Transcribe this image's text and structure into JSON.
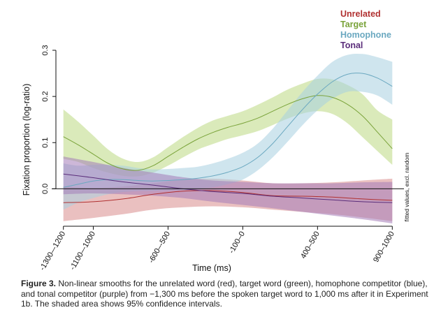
{
  "chart_data": {
    "type": "line",
    "xlabel": "Time (ms)",
    "ylabel": "Fixation proportion (log-ratio)",
    "side_note": "fitted values, excl. random",
    "xlim": [
      -1300,
      1000
    ],
    "ylim": [
      -0.075,
      0.3
    ],
    "x_ticks": [
      {
        "value": -1250,
        "label": "-1300–-1200"
      },
      {
        "value": -1050,
        "label": "-1100–-1000"
      },
      {
        "value": -550,
        "label": "-600–-500"
      },
      {
        "value": -50,
        "label": "-100–0"
      },
      {
        "value": 450,
        "label": "400–500"
      },
      {
        "value": 950,
        "label": "900–1000"
      }
    ],
    "y_ticks": [
      {
        "value": 0.0,
        "label": "0.0"
      },
      {
        "value": 0.1,
        "label": "0.1"
      },
      {
        "value": 0.2,
        "label": "0.2"
      },
      {
        "value": 0.3,
        "label": "0.3"
      }
    ],
    "legend_position": "top-right",
    "series": [
      {
        "name": "Unrelated",
        "color": "#b03030",
        "band_color": "#d98c8c",
        "x": [
          -1250,
          -1050,
          -850,
          -650,
          -450,
          -250,
          -50,
          150,
          350,
          550,
          750,
          950
        ],
        "y": [
          -0.03,
          -0.028,
          -0.022,
          -0.012,
          -0.005,
          -0.004,
          -0.008,
          -0.015,
          -0.016,
          -0.018,
          -0.022,
          -0.025
        ],
        "lower": [
          -0.07,
          -0.063,
          -0.055,
          -0.045,
          -0.04,
          -0.038,
          -0.04,
          -0.045,
          -0.05,
          -0.055,
          -0.062,
          -0.07
        ],
        "upper": [
          0.005,
          0.002,
          0.005,
          0.012,
          0.02,
          0.022,
          0.018,
          0.012,
          0.012,
          0.014,
          0.018,
          0.022
        ]
      },
      {
        "name": "Target",
        "color": "#7aa33a",
        "band_color": "#bcd882",
        "x": [
          -1250,
          -1150,
          -1050,
          -950,
          -850,
          -750,
          -650,
          -550,
          -450,
          -350,
          -250,
          -150,
          -50,
          50,
          150,
          250,
          350,
          450,
          550,
          650,
          750,
          850,
          950
        ],
        "y": [
          0.113,
          0.095,
          0.075,
          0.055,
          0.043,
          0.04,
          0.05,
          0.07,
          0.09,
          0.108,
          0.122,
          0.133,
          0.142,
          0.153,
          0.168,
          0.183,
          0.195,
          0.202,
          0.198,
          0.183,
          0.158,
          0.123,
          0.087
        ],
        "lower": [
          0.065,
          0.058,
          0.045,
          0.035,
          0.028,
          0.027,
          0.035,
          0.05,
          0.068,
          0.085,
          0.097,
          0.108,
          0.116,
          0.125,
          0.138,
          0.152,
          0.163,
          0.168,
          0.162,
          0.142,
          0.112,
          0.082,
          0.052
        ],
        "upper": [
          0.172,
          0.145,
          0.115,
          0.085,
          0.065,
          0.058,
          0.068,
          0.09,
          0.112,
          0.132,
          0.148,
          0.158,
          0.168,
          0.182,
          0.198,
          0.215,
          0.228,
          0.238,
          0.237,
          0.225,
          0.205,
          0.17,
          0.15
        ]
      },
      {
        "name": "Homophone",
        "color": "#6aa8c0",
        "band_color": "#a8d0e0",
        "x": [
          -1250,
          -1150,
          -1050,
          -950,
          -850,
          -750,
          -650,
          -550,
          -450,
          -350,
          -250,
          -150,
          -50,
          50,
          150,
          250,
          350,
          450,
          550,
          650,
          750,
          850,
          950
        ],
        "y": [
          0.003,
          0.01,
          0.017,
          0.02,
          0.02,
          0.018,
          0.017,
          0.018,
          0.02,
          0.023,
          0.028,
          0.036,
          0.048,
          0.068,
          0.098,
          0.135,
          0.172,
          0.205,
          0.232,
          0.248,
          0.25,
          0.24,
          0.222
        ],
        "lower": [
          -0.045,
          -0.03,
          -0.02,
          -0.012,
          -0.007,
          -0.005,
          -0.005,
          -0.004,
          -0.003,
          0.0,
          0.003,
          0.01,
          0.02,
          0.04,
          0.068,
          0.102,
          0.138,
          0.17,
          0.195,
          0.21,
          0.21,
          0.202,
          0.182
        ],
        "upper": [
          0.055,
          0.05,
          0.052,
          0.052,
          0.05,
          0.045,
          0.042,
          0.043,
          0.045,
          0.048,
          0.055,
          0.065,
          0.078,
          0.098,
          0.13,
          0.17,
          0.21,
          0.245,
          0.275,
          0.29,
          0.292,
          0.285,
          0.275
        ]
      },
      {
        "name": "Tonal",
        "color": "#5a2d7a",
        "band_color": "#a47cb8",
        "x": [
          -1250,
          -1050,
          -850,
          -650,
          -450,
          -250,
          -50,
          150,
          350,
          550,
          750,
          950
        ],
        "y": [
          0.032,
          0.024,
          0.015,
          0.008,
          0.0,
          -0.006,
          -0.01,
          -0.016,
          -0.02,
          -0.024,
          -0.028,
          -0.03
        ],
        "lower": [
          -0.012,
          -0.01,
          -0.012,
          -0.015,
          -0.02,
          -0.028,
          -0.035,
          -0.042,
          -0.05,
          -0.058,
          -0.066,
          -0.075
        ],
        "upper": [
          0.07,
          0.058,
          0.045,
          0.035,
          0.025,
          0.018,
          0.015,
          0.012,
          0.012,
          0.012,
          0.014,
          0.015
        ]
      }
    ]
  },
  "caption": {
    "label": "Figure 3.",
    "text": "Non-linear smooths for the unrelated word (red), target word (green), homophone competitor (blue), and tonal competitor (purple) from −1,300 ms before the spoken target word to 1,000 ms after it in Experiment 1b. The shaded area shows 95% confidence intervals."
  }
}
